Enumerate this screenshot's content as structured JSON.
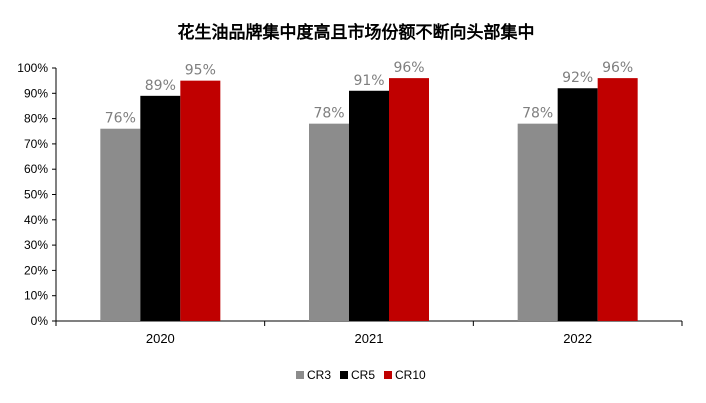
{
  "chart_data": {
    "type": "bar",
    "title": "花生油品牌集中度高且市场份额不断向头部集中",
    "categories": [
      "2020",
      "2021",
      "2022"
    ],
    "series": [
      {
        "name": "CR3",
        "values": [
          76,
          78,
          78
        ],
        "labels": [
          "76%",
          "78%",
          "78%"
        ],
        "color": "#8c8c8c"
      },
      {
        "name": "CR5",
        "values": [
          89,
          91,
          92
        ],
        "labels": [
          "89%",
          "91%",
          "92%"
        ],
        "color": "#000000"
      },
      {
        "name": "CR10",
        "values": [
          95,
          96,
          96
        ],
        "labels": [
          "95%",
          "96%",
          "96%"
        ],
        "color": "#c00000"
      }
    ],
    "ylim": [
      0,
      100
    ],
    "yticks": [
      "0%",
      "10%",
      "20%",
      "30%",
      "40%",
      "50%",
      "60%",
      "70%",
      "80%",
      "90%",
      "100%"
    ],
    "grid": false,
    "legend": "bottom-center",
    "xlabel": "",
    "ylabel": ""
  }
}
